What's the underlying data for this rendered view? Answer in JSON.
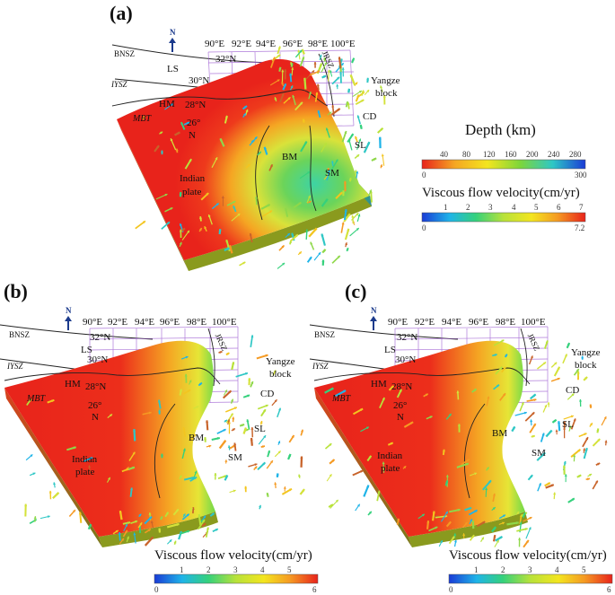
{
  "panels": [
    {
      "id": "a",
      "letter": "(a)",
      "north": "N",
      "longitudes": [
        "90°E",
        "92°E",
        "94°E",
        "96°E",
        "98°E",
        "100°E"
      ],
      "latitudes": [
        "32°N",
        "30°N",
        "28°N",
        "26°",
        "N"
      ],
      "regions": {
        "BNSZ": "BNSZ",
        "IYSZ": "IYSZ",
        "MBT": "MBT",
        "LS": "LS",
        "HM": "HM",
        "JRSZ": "JRSZ",
        "Yangze1": "Yangze",
        "Yangze2": "block",
        "CD": "CD",
        "SL": "SL",
        "BM": "BM",
        "SM": "SM",
        "Indian1": "Indian",
        "Indian2": "plate"
      }
    },
    {
      "id": "b",
      "letter": "(b)",
      "north": "N",
      "longitudes": [
        "90°E",
        "92°E",
        "94°E",
        "96°E",
        "98°E",
        "100°E"
      ],
      "latitudes": [
        "32°N",
        "30°N",
        "28°N",
        "26°",
        "N"
      ],
      "regions": {
        "BNSZ": "BNSZ",
        "IYSZ": "IYSZ",
        "MBT": "MBT",
        "LS": "LS",
        "HM": "HM",
        "JRSZ": "JRSZ",
        "Yangze1": "Yangze",
        "Yangze2": "block",
        "CD": "CD",
        "SL": "SL",
        "BM": "BM",
        "SM": "SM",
        "Indian1": "Indian",
        "Indian2": "plate"
      }
    },
    {
      "id": "c",
      "letter": "(c)",
      "north": "N",
      "longitudes": [
        "90°E",
        "92°E",
        "94°E",
        "96°E",
        "98°E",
        "100°E"
      ],
      "latitudes": [
        "32°N",
        "30°N",
        "28°N",
        "26°",
        "N"
      ],
      "regions": {
        "BNSZ": "BNSZ",
        "IYSZ": "IYSZ",
        "MBT": "MBT",
        "LS": "LS",
        "HM": "HM",
        "JRSZ": "JRSZ",
        "Yangze1": "Yangze",
        "Yangze2": "block",
        "CD": "CD",
        "SL": "SL",
        "BM": "BM",
        "SM": "SM",
        "Indian1": "Indian",
        "Indian2": "plate"
      }
    }
  ],
  "colorbars": {
    "depth": {
      "title": "Depth (km)",
      "ticks": [
        "40",
        "80",
        "120",
        "160",
        "200",
        "240",
        "280"
      ],
      "min": "0",
      "max": "300",
      "stops": [
        "#e8231b",
        "#f5a623",
        "#f3e51f",
        "#7ed63a",
        "#2ec7c5",
        "#1a3bd6"
      ]
    },
    "velocity_a": {
      "title": "Viscous flow velocity(cm/yr)",
      "ticks": [
        "1",
        "2",
        "3",
        "4",
        "5",
        "6",
        "7"
      ],
      "min": "0",
      "max": "7.2",
      "stops": [
        "#1a3bd6",
        "#1fb4e8",
        "#35d17c",
        "#b8e23a",
        "#f3e51f",
        "#f59a23",
        "#e8231b"
      ]
    },
    "velocity_b": {
      "title": "Viscous flow velocity(cm/yr)",
      "ticks": [
        "1",
        "2",
        "3",
        "4",
        "5"
      ],
      "min": "0",
      "max": "6",
      "stops": [
        "#1a3bd6",
        "#1fb4e8",
        "#35d17c",
        "#b8e23a",
        "#f3e51f",
        "#f59a23",
        "#e8231b"
      ]
    },
    "velocity_c": {
      "title": "Viscous flow velocity(cm/yr)",
      "ticks": [
        "1",
        "2",
        "3",
        "4",
        "5"
      ],
      "min": "0",
      "max": "6",
      "stops": [
        "#1a3bd6",
        "#1fb4e8",
        "#35d17c",
        "#b8e23a",
        "#f3e51f",
        "#f59a23",
        "#e8231b"
      ]
    }
  }
}
